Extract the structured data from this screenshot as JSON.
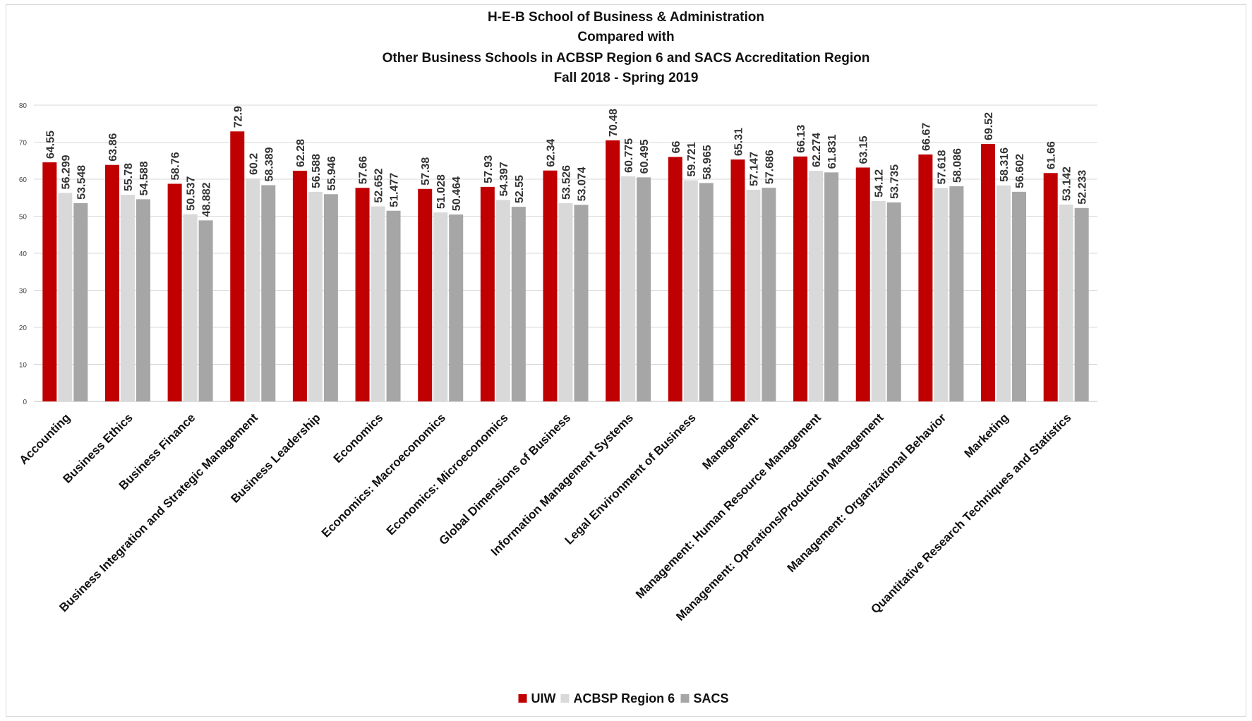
{
  "chart_data": {
    "type": "bar",
    "title_lines": [
      "H-E-B School of Business & Administration",
      "Compared with",
      "Other Business Schools in ACBSP Region 6 and SACS Accreditation Region",
      "Fall 2018 - Spring 2019"
    ],
    "xlabel": "",
    "ylabel": "",
    "ylim": [
      0,
      80
    ],
    "yticks": [
      "0",
      "10",
      "20",
      "30",
      "40",
      "50",
      "60",
      "70",
      "80"
    ],
    "grid": true,
    "legend_position": "bottom",
    "categories": [
      "Accounting",
      "Business Ethics",
      "Business Finance",
      "Business Integration and Strategic Management",
      "Business Leadership",
      "Economics",
      "Economics: Macroeconomics",
      "Economics: Microeconomics",
      "Global Dimensions of Business",
      "Information Management Systems",
      "Legal Environment of Business",
      "Management",
      "Management: Human Resource Management",
      "Management: Operations/Production Management",
      "Management: Organizational Behavior",
      "Marketing",
      "Quantitative Research Techniques and Statistics"
    ],
    "series": [
      {
        "name": "UIW",
        "color": "#c00000",
        "values": [
          64.55,
          63.86,
          58.76,
          72.9,
          62.28,
          57.66,
          57.38,
          57.93,
          62.34,
          70.48,
          66,
          65.31,
          66.13,
          63.15,
          66.67,
          69.52,
          61.66
        ],
        "labels": [
          "64.55",
          "63.86",
          "58.76",
          "72.9",
          "62.28",
          "57.66",
          "57.38",
          "57.93",
          "62.34",
          "70.48",
          "66",
          "65.31",
          "66.13",
          "63.15",
          "66.67",
          "69.52",
          "61.66"
        ]
      },
      {
        "name": "ACBSP Region 6",
        "color": "#d9d9d9",
        "values": [
          56.299,
          55.78,
          50.537,
          60.2,
          56.588,
          52.652,
          51.028,
          54.397,
          53.526,
          60.775,
          59.721,
          57.147,
          62.274,
          54.12,
          57.618,
          58.316,
          53.142
        ],
        "labels": [
          "56.299",
          "55.78",
          "50.537",
          "60.2",
          "56.588",
          "52.652",
          "51.028",
          "54.397",
          "53.526",
          "60.775",
          "59.721",
          "57.147",
          "62.274",
          "54.12",
          "57.618",
          "58.316",
          "53.142"
        ]
      },
      {
        "name": "SACS",
        "color": "#a6a6a6",
        "values": [
          53.548,
          54.588,
          48.882,
          58.389,
          55.946,
          51.477,
          50.464,
          52.55,
          53.074,
          60.495,
          58.965,
          57.686,
          61.831,
          53.735,
          58.086,
          56.602,
          52.233
        ],
        "labels": [
          "53.548",
          "54.588",
          "48.882",
          "58.389",
          "55.946",
          "51.477",
          "50.464",
          "52.55",
          "53.074",
          "60.495",
          "58.965",
          "57.686",
          "61.831",
          "53.735",
          "58.086",
          "56.602",
          "52.233"
        ]
      }
    ]
  }
}
